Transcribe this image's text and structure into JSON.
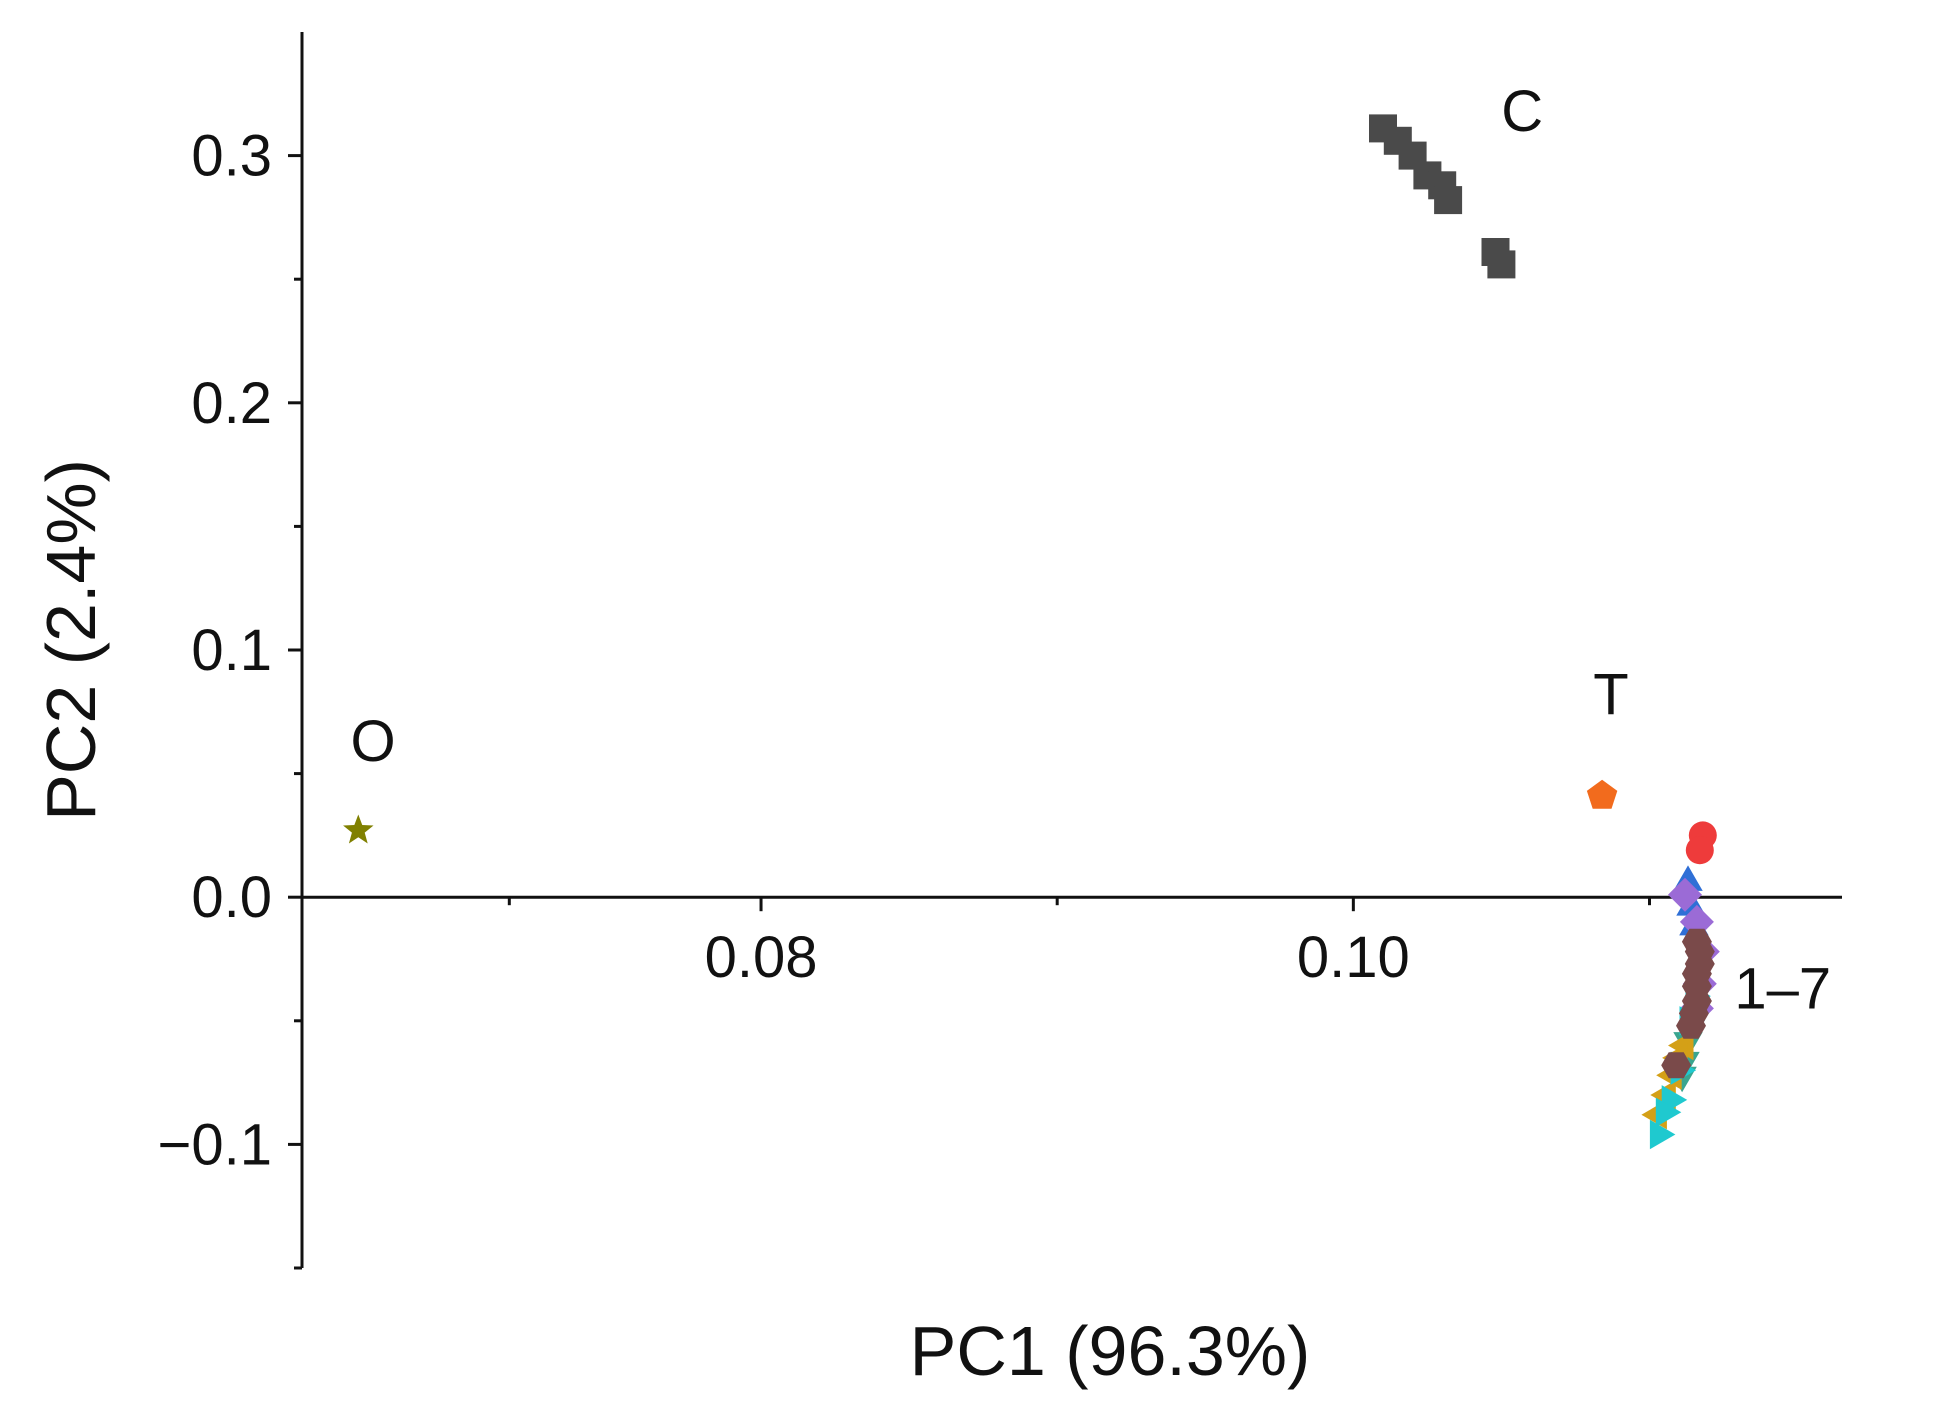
{
  "chart_data": {
    "type": "scatter",
    "xlabel": "PC1 (96.3%)",
    "ylabel": "PC2 (2.4%)",
    "xlim": [
      0.0645,
      0.1165
    ],
    "ylim": [
      -0.15,
      0.35
    ],
    "x_ticks": [
      {
        "value": 0.08,
        "label": "0.08"
      },
      {
        "value": 0.1,
        "label": "0.10"
      }
    ],
    "x_minor_ticks": [
      0.0715,
      0.09,
      0.11
    ],
    "y_ticks": [
      {
        "value": 0.3,
        "label": "0.3"
      },
      {
        "value": 0.2,
        "label": "0.2"
      },
      {
        "value": 0.1,
        "label": "0.1"
      },
      {
        "value": 0.0,
        "label": "0.0"
      },
      {
        "value": -0.1,
        "label": "−0.1"
      }
    ],
    "y_minor_ticks": [
      0.25,
      0.15,
      0.05,
      -0.05,
      -0.15
    ],
    "grid": false,
    "legend": "none",
    "annotations": [
      {
        "text": "C",
        "x": 0.1057,
        "y": 0.31
      },
      {
        "text": "T",
        "x": 0.1087,
        "y": 0.074
      },
      {
        "text": "O",
        "x": 0.0669,
        "y": 0.055
      },
      {
        "text": "1–7",
        "x": 0.1145,
        "y": -0.045
      }
    ],
    "series": [
      {
        "marker": "square",
        "color": "#4a4a4a",
        "points": [
          [
            0.101,
            0.311
          ],
          [
            0.1015,
            0.306
          ],
          [
            0.102,
            0.3
          ],
          [
            0.1025,
            0.292
          ],
          [
            0.103,
            0.288
          ],
          [
            0.1032,
            0.282
          ],
          [
            0.1048,
            0.261
          ],
          [
            0.105,
            0.256
          ]
        ]
      },
      {
        "marker": "pentagon",
        "color": "#f26b1d",
        "points": [
          [
            0.1084,
            0.041
          ]
        ]
      },
      {
        "marker": "star",
        "color": "#808000",
        "points": [
          [
            0.0664,
            0.027
          ]
        ]
      },
      {
        "marker": "circle",
        "color": "#ee3b3b",
        "points": [
          [
            0.1118,
            0.025
          ],
          [
            0.1117,
            0.019
          ]
        ]
      },
      {
        "marker": "triangle-up",
        "color": "#2f6fd6",
        "points": [
          [
            0.1113,
            0.006
          ],
          [
            0.1114,
            -0.004
          ],
          [
            0.1115,
            -0.012
          ]
        ]
      },
      {
        "marker": "diamond",
        "color": "#9b6bd6",
        "points": [
          [
            0.1112,
            0.001
          ],
          [
            0.1116,
            -0.01
          ],
          [
            0.1118,
            -0.022
          ],
          [
            0.1117,
            -0.035
          ],
          [
            0.1116,
            -0.045
          ]
        ]
      },
      {
        "marker": "triangle-down",
        "color": "#3aa58f",
        "points": [
          [
            0.1115,
            -0.05
          ],
          [
            0.1113,
            -0.058
          ],
          [
            0.1112,
            -0.066
          ],
          [
            0.1111,
            -0.072
          ]
        ]
      },
      {
        "marker": "triangle-left",
        "color": "#d4a017",
        "points": [
          [
            0.1112,
            -0.06
          ],
          [
            0.111,
            -0.065
          ],
          [
            0.1108,
            -0.072
          ],
          [
            0.1106,
            -0.08
          ],
          [
            0.1103,
            -0.088
          ]
        ]
      },
      {
        "marker": "triangle-right",
        "color": "#1fc9cf",
        "points": [
          [
            0.1115,
            -0.04
          ],
          [
            0.1113,
            -0.05
          ],
          [
            0.111,
            -0.07
          ],
          [
            0.1107,
            -0.082
          ],
          [
            0.1105,
            -0.087
          ],
          [
            0.1103,
            -0.096
          ]
        ]
      },
      {
        "marker": "hexagon",
        "color": "#7a4a4a",
        "points": [
          [
            0.1116,
            -0.018
          ],
          [
            0.1117,
            -0.022
          ],
          [
            0.1117,
            -0.027
          ],
          [
            0.1116,
            -0.031
          ],
          [
            0.1116,
            -0.036
          ],
          [
            0.1116,
            -0.042
          ],
          [
            0.1115,
            -0.047
          ],
          [
            0.1114,
            -0.052
          ],
          [
            0.1109,
            -0.068
          ]
        ]
      }
    ]
  }
}
